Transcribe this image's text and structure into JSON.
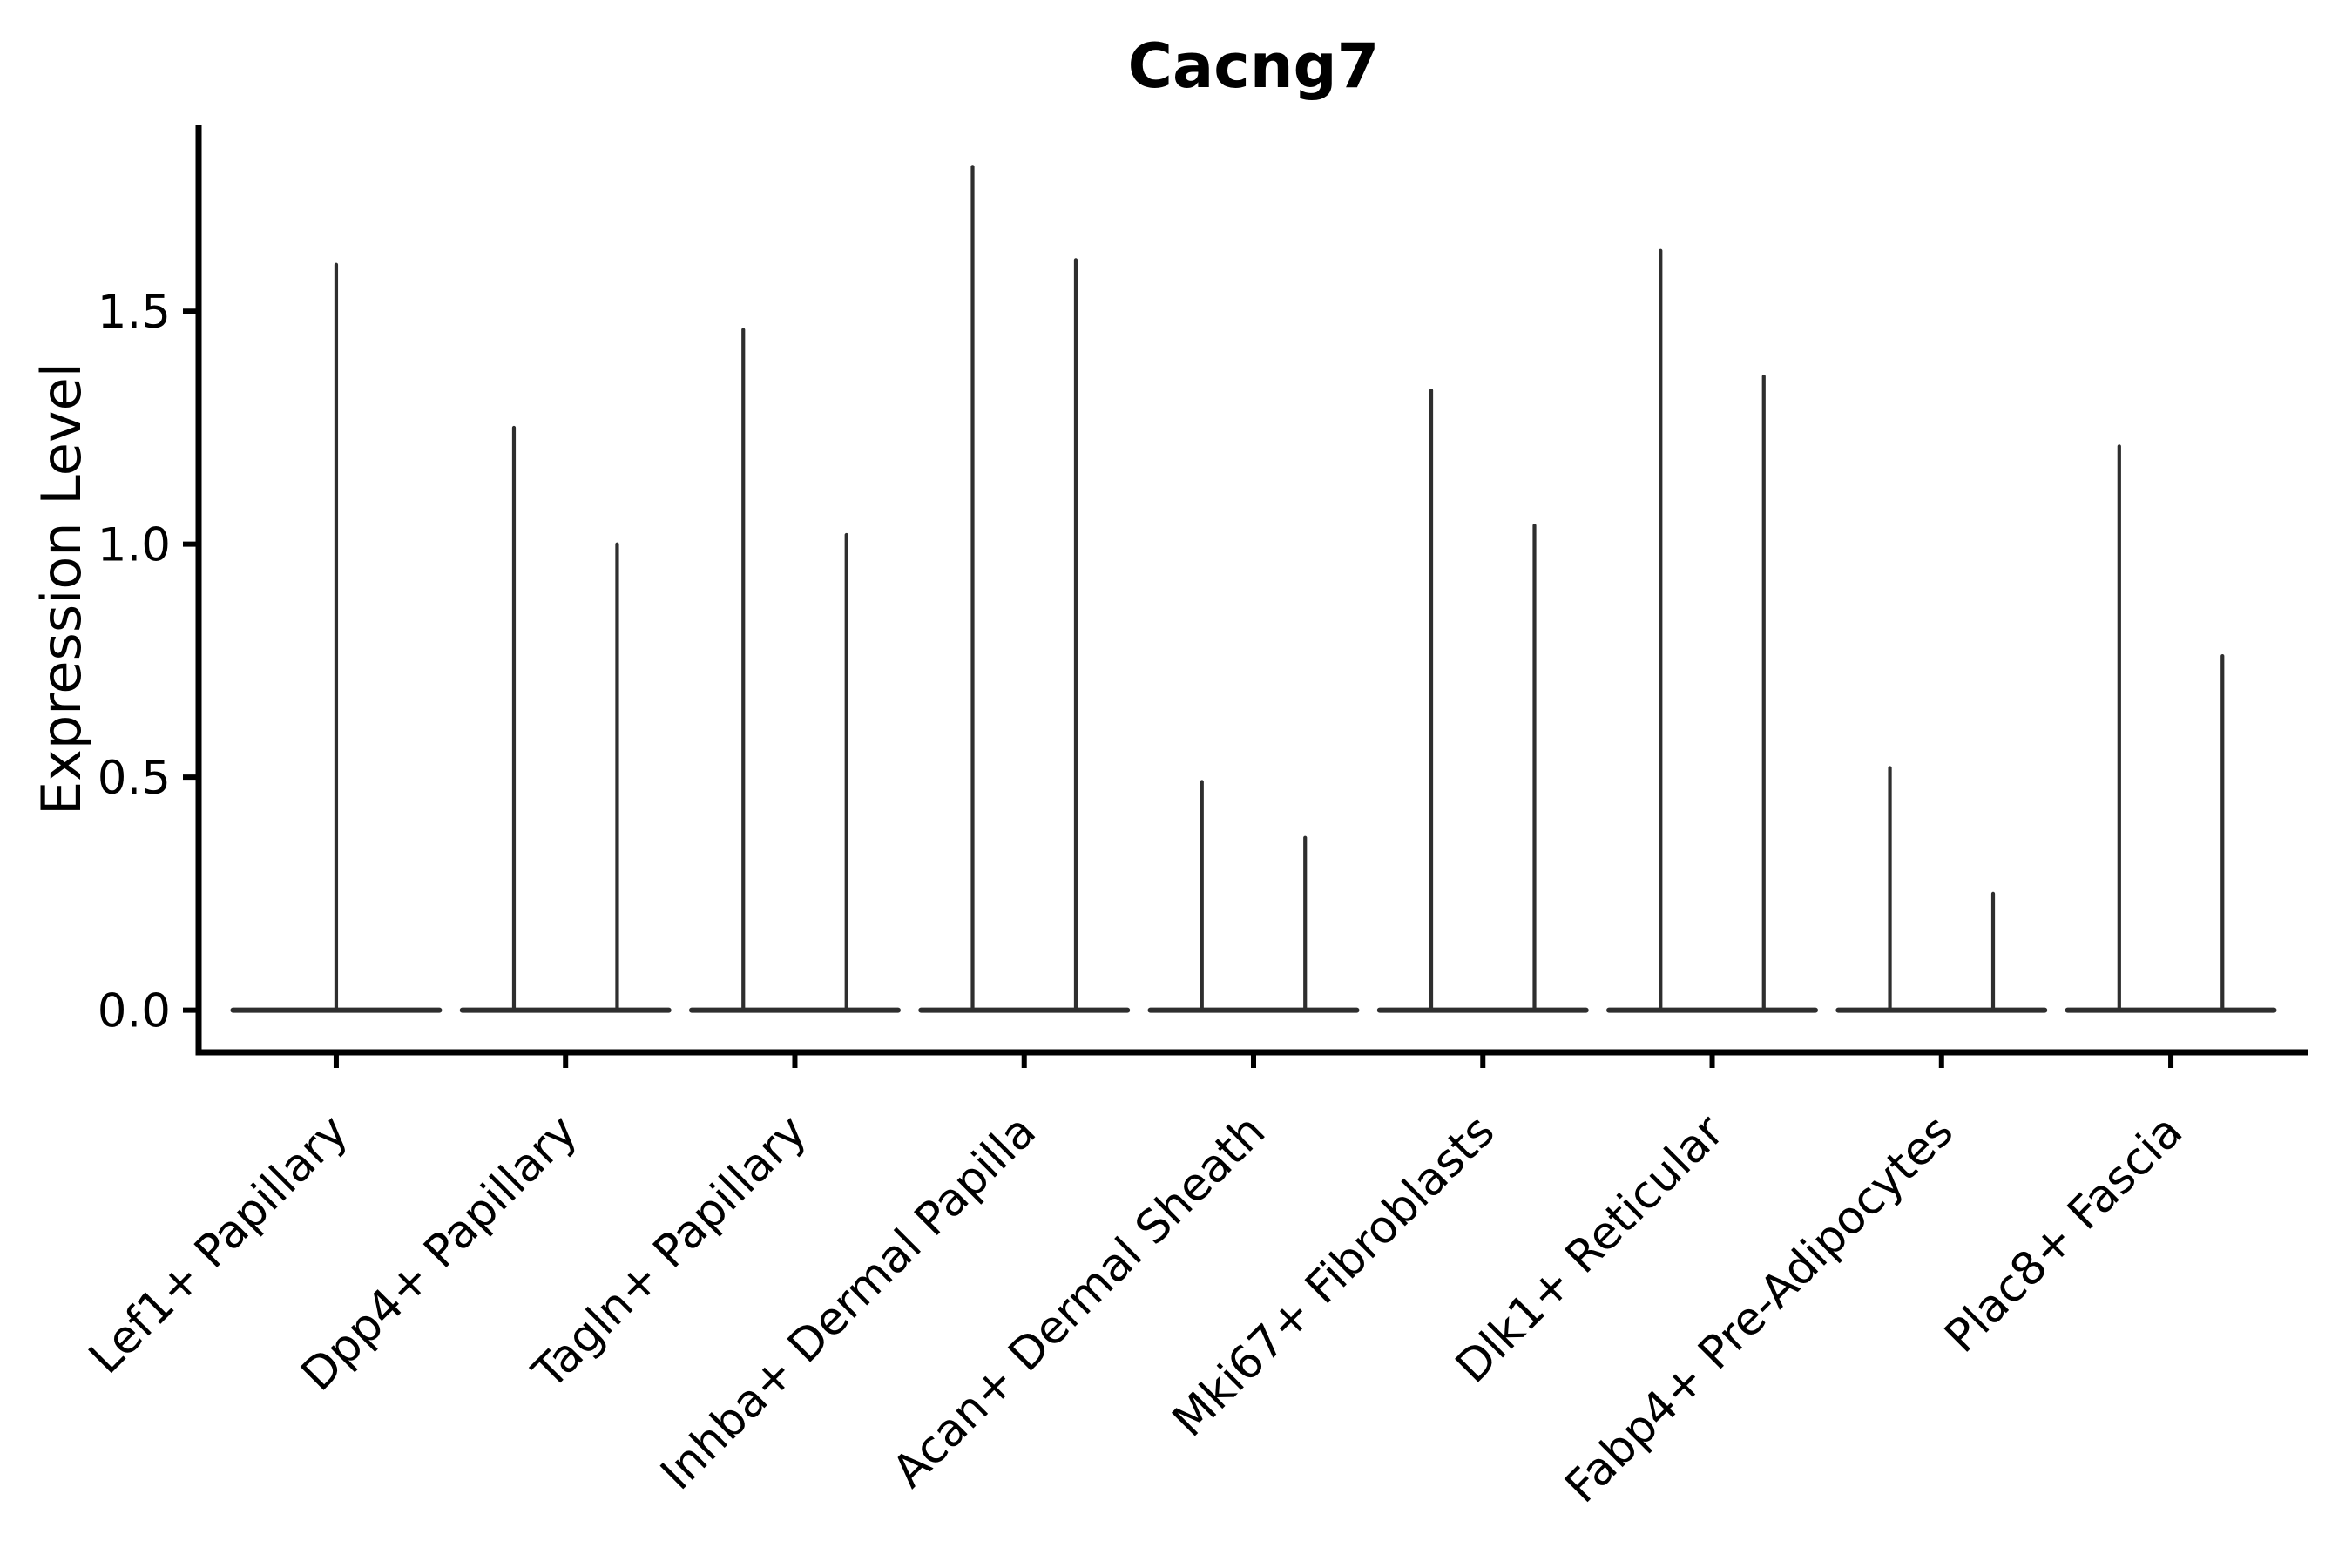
{
  "chart_data": {
    "type": "violin",
    "title": "Cacng7",
    "xlabel": "",
    "ylabel": "Expression Level",
    "categories": [
      "Lef1+ Papillary",
      "Dpp4+ Papillary",
      "Tagln+ Papillary",
      "Inhba+ Dermal Papilla",
      "Acan+ Dermal Sheath",
      "Mki67+ Fibroblasts",
      "Dlk1+ Reticular",
      "Fabp4+ Pre-Adipocytes",
      "Plac8+ Fascia"
    ],
    "series": [
      {
        "category": "Lef1+ Papillary",
        "violin_peaks": [
          1.6
        ]
      },
      {
        "category": "Dpp4+ Papillary",
        "violin_peaks": [
          1.25,
          1.0
        ]
      },
      {
        "category": "Tagln+ Papillary",
        "violin_peaks": [
          1.46,
          1.02
        ]
      },
      {
        "category": "Inhba+ Dermal Papilla",
        "violin_peaks": [
          1.81,
          1.61
        ]
      },
      {
        "category": "Acan+ Dermal Sheath",
        "violin_peaks": [
          0.49,
          0.37
        ]
      },
      {
        "category": "Mki67+ Fibroblasts",
        "violin_peaks": [
          1.33,
          1.04
        ]
      },
      {
        "category": "Dlk1+ Reticular",
        "violin_peaks": [
          1.63,
          1.36
        ]
      },
      {
        "category": "Fabp4+ Pre-Adipocytes",
        "violin_peaks": [
          0.52,
          0.25
        ]
      },
      {
        "category": "Plac8+ Fascia",
        "violin_peaks": [
          1.21,
          0.76
        ]
      }
    ],
    "baseline_value": 0.0,
    "y_tick_labels": [
      "0.0",
      "0.5",
      "1.0",
      "1.5"
    ],
    "y_tick_values": [
      0.0,
      0.5,
      1.0,
      1.5
    ],
    "ylim": [
      -0.0905,
      1.9005
    ],
    "grid": false,
    "legend": null,
    "x_label_rotation_deg": 45,
    "violin_shape": "flat zero baseline with thin vertical density spike to peak",
    "colors": {
      "violin_stroke": "#2e2e2e",
      "axis": "#000000",
      "text": "#000000",
      "background": "#ffffff"
    }
  }
}
